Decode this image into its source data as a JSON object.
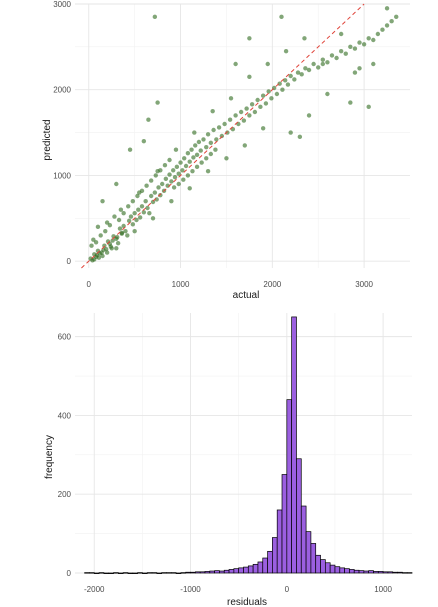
{
  "chart_data": [
    {
      "type": "scatter",
      "xlabel": "actual",
      "ylabel": "predicted",
      "xlim": [
        -150,
        3500
      ],
      "ylim": [
        -80,
        3000
      ],
      "x_ticks": [
        0,
        1000,
        2000,
        3000
      ],
      "y_ticks": [
        0,
        1000,
        2000,
        3000
      ],
      "x_tick_labels": [
        "0",
        "1000",
        "2000",
        "3000"
      ],
      "y_tick_labels": [
        "0",
        "1000",
        "2000",
        "3000"
      ],
      "grid": true,
      "point_color": "#2e6b1e",
      "reference_line": {
        "slope": 1,
        "intercept": 0,
        "color": "#e0443a",
        "style": "dashed"
      },
      "points": [
        [
          20,
          30
        ],
        [
          40,
          10
        ],
        [
          60,
          80
        ],
        [
          80,
          50
        ],
        [
          100,
          120
        ],
        [
          120,
          90
        ],
        [
          150,
          60
        ],
        [
          170,
          180
        ],
        [
          190,
          140
        ],
        [
          210,
          230
        ],
        [
          230,
          200
        ],
        [
          250,
          150
        ],
        [
          270,
          290
        ],
        [
          300,
          260
        ],
        [
          320,
          210
        ],
        [
          340,
          380
        ],
        [
          360,
          320
        ],
        [
          380,
          410
        ],
        [
          400,
          350
        ],
        [
          420,
          300
        ],
        [
          440,
          470
        ],
        [
          460,
          520
        ],
        [
          480,
          430
        ],
        [
          500,
          560
        ],
        [
          520,
          480
        ],
        [
          540,
          600
        ],
        [
          560,
          510
        ],
        [
          580,
          640
        ],
        [
          600,
          570
        ],
        [
          620,
          700
        ],
        [
          640,
          620
        ],
        [
          660,
          560
        ],
        [
          680,
          760
        ],
        [
          700,
          690
        ],
        [
          720,
          800
        ],
        [
          740,
          720
        ],
        [
          760,
          860
        ],
        [
          780,
          770
        ],
        [
          800,
          900
        ],
        [
          820,
          820
        ],
        [
          840,
          960
        ],
        [
          860,
          880
        ],
        [
          880,
          1010
        ],
        [
          900,
          930
        ],
        [
          920,
          1060
        ],
        [
          940,
          980
        ],
        [
          960,
          1100
        ],
        [
          980,
          1020
        ],
        [
          1000,
          1150
        ],
        [
          1020,
          1060
        ],
        [
          1040,
          1200
        ],
        [
          1060,
          1110
        ],
        [
          1080,
          1260
        ],
        [
          1100,
          1160
        ],
        [
          1120,
          1300
        ],
        [
          1140,
          1210
        ],
        [
          1160,
          1350
        ],
        [
          1180,
          1240
        ],
        [
          1200,
          1390
        ],
        [
          1220,
          1290
        ],
        [
          1250,
          1420
        ],
        [
          1280,
          1330
        ],
        [
          1300,
          1480
        ],
        [
          1330,
          1380
        ],
        [
          1360,
          1530
        ],
        [
          1390,
          1420
        ],
        [
          1420,
          1560
        ],
        [
          1450,
          1460
        ],
        [
          1480,
          1600
        ],
        [
          1510,
          1500
        ],
        [
          1540,
          1650
        ],
        [
          1570,
          1540
        ],
        [
          1600,
          1700
        ],
        [
          1630,
          1600
        ],
        [
          1660,
          1740
        ],
        [
          1690,
          1640
        ],
        [
          1720,
          1780
        ],
        [
          1750,
          1700
        ],
        [
          1780,
          1830
        ],
        [
          1810,
          1740
        ],
        [
          1840,
          1880
        ],
        [
          1870,
          1800
        ],
        [
          1900,
          1930
        ],
        [
          1930,
          1840
        ],
        [
          1960,
          1980
        ],
        [
          1990,
          1900
        ],
        [
          2020,
          2020
        ],
        [
          2050,
          1950
        ],
        [
          2080,
          2070
        ],
        [
          2110,
          2000
        ],
        [
          2140,
          2110
        ],
        [
          2170,
          2060
        ],
        [
          2200,
          2160
        ],
        [
          2240,
          2120
        ],
        [
          2280,
          2200
        ],
        [
          2320,
          2180
        ],
        [
          2360,
          2250
        ],
        [
          2400,
          2230
        ],
        [
          2450,
          2300
        ],
        [
          2500,
          2260
        ],
        [
          2550,
          2350
        ],
        [
          2600,
          2320
        ],
        [
          2650,
          2400
        ],
        [
          2700,
          2370
        ],
        [
          2750,
          2450
        ],
        [
          2800,
          2420
        ],
        [
          2850,
          2500
        ],
        [
          2900,
          2480
        ],
        [
          2950,
          2550
        ],
        [
          3000,
          2530
        ],
        [
          3050,
          2600
        ],
        [
          3100,
          2580
        ],
        [
          3150,
          2650
        ],
        [
          3200,
          2700
        ],
        [
          3250,
          2750
        ],
        [
          3300,
          2800
        ],
        [
          3350,
          2850
        ],
        [
          3250,
          2950
        ],
        [
          3100,
          2300
        ],
        [
          2850,
          1850
        ],
        [
          2400,
          1700
        ],
        [
          2200,
          1500
        ],
        [
          1900,
          1550
        ],
        [
          1700,
          1350
        ],
        [
          1500,
          1200
        ],
        [
          1300,
          1050
        ],
        [
          1100,
          850
        ],
        [
          900,
          700
        ],
        [
          700,
          500
        ],
        [
          500,
          350
        ],
        [
          300,
          150
        ],
        [
          200,
          450
        ],
        [
          350,
          600
        ],
        [
          550,
          800
        ],
        [
          750,
          1050
        ],
        [
          950,
          1300
        ],
        [
          1150,
          1500
        ],
        [
          1350,
          1750
        ],
        [
          1550,
          1900
        ],
        [
          1750,
          2150
        ],
        [
          1950,
          2300
        ],
        [
          2150,
          2450
        ],
        [
          2350,
          2600
        ],
        [
          2550,
          2300
        ],
        [
          2750,
          2650
        ],
        [
          2950,
          2250
        ],
        [
          3050,
          1800
        ],
        [
          650,
          1650
        ],
        [
          750,
          1850
        ],
        [
          720,
          2850
        ],
        [
          1600,
          2300
        ],
        [
          1750,
          2600
        ],
        [
          2100,
          2850
        ],
        [
          2600,
          1950
        ],
        [
          2300,
          1450
        ],
        [
          2900,
          2200
        ],
        [
          450,
          1300
        ],
        [
          600,
          1400
        ],
        [
          300,
          900
        ],
        [
          150,
          700
        ],
        [
          100,
          400
        ],
        [
          50,
          250
        ],
        [
          30,
          180
        ],
        [
          80,
          220
        ],
        [
          130,
          300
        ],
        [
          180,
          350
        ],
        [
          230,
          420
        ],
        [
          280,
          520
        ],
        [
          330,
          480
        ],
        [
          380,
          560
        ],
        [
          430,
          640
        ],
        [
          480,
          700
        ],
        [
          530,
          760
        ],
        [
          580,
          820
        ],
        [
          630,
          880
        ],
        [
          680,
          940
        ],
        [
          730,
          1000
        ],
        [
          780,
          1060
        ],
        [
          830,
          1120
        ],
        [
          880,
          1180
        ],
        [
          930,
          860
        ],
        [
          980,
          900
        ],
        [
          1030,
          950
        ],
        [
          1080,
          1000
        ],
        [
          1130,
          1050
        ],
        [
          1180,
          1100
        ],
        [
          1230,
          1150
        ],
        [
          1280,
          1200
        ],
        [
          1330,
          1250
        ],
        [
          1380,
          1300
        ],
        [
          60,
          20
        ],
        [
          90,
          70
        ],
        [
          110,
          40
        ],
        [
          140,
          100
        ],
        [
          160,
          130
        ],
        [
          200,
          100
        ],
        [
          240,
          170
        ],
        [
          260,
          240
        ],
        [
          310,
          280
        ],
        [
          360,
          330
        ]
      ]
    },
    {
      "type": "bar",
      "subtype": "histogram",
      "xlabel": "residuals",
      "ylabel": "frequency",
      "xlim": [
        -2200,
        1300
      ],
      "ylim": [
        0,
        660
      ],
      "x_ticks": [
        -2000,
        -1000,
        0,
        1000
      ],
      "y_ticks": [
        0,
        200,
        400,
        600
      ],
      "x_tick_labels": [
        "-2000",
        "-1000",
        "0",
        "1000"
      ],
      "y_tick_labels": [
        "0",
        "200",
        "400",
        "600"
      ],
      "grid": true,
      "bar_color": "#9b5fe0",
      "edge_color": "#000000",
      "bin_start": -2100,
      "bin_width": 50,
      "values": [
        1,
        1,
        0,
        1,
        0,
        0,
        1,
        0,
        1,
        0,
        0,
        1,
        0,
        1,
        1,
        0,
        1,
        1,
        1,
        0,
        1,
        2,
        2,
        3,
        3,
        4,
        5,
        6,
        5,
        7,
        9,
        11,
        13,
        15,
        18,
        22,
        28,
        38,
        55,
        90,
        160,
        250,
        440,
        650,
        290,
        170,
        105,
        75,
        45,
        34,
        26,
        20,
        16,
        13,
        11,
        9,
        7,
        6,
        5,
        6,
        4,
        4,
        3,
        3,
        2,
        2,
        1,
        1
      ]
    }
  ]
}
